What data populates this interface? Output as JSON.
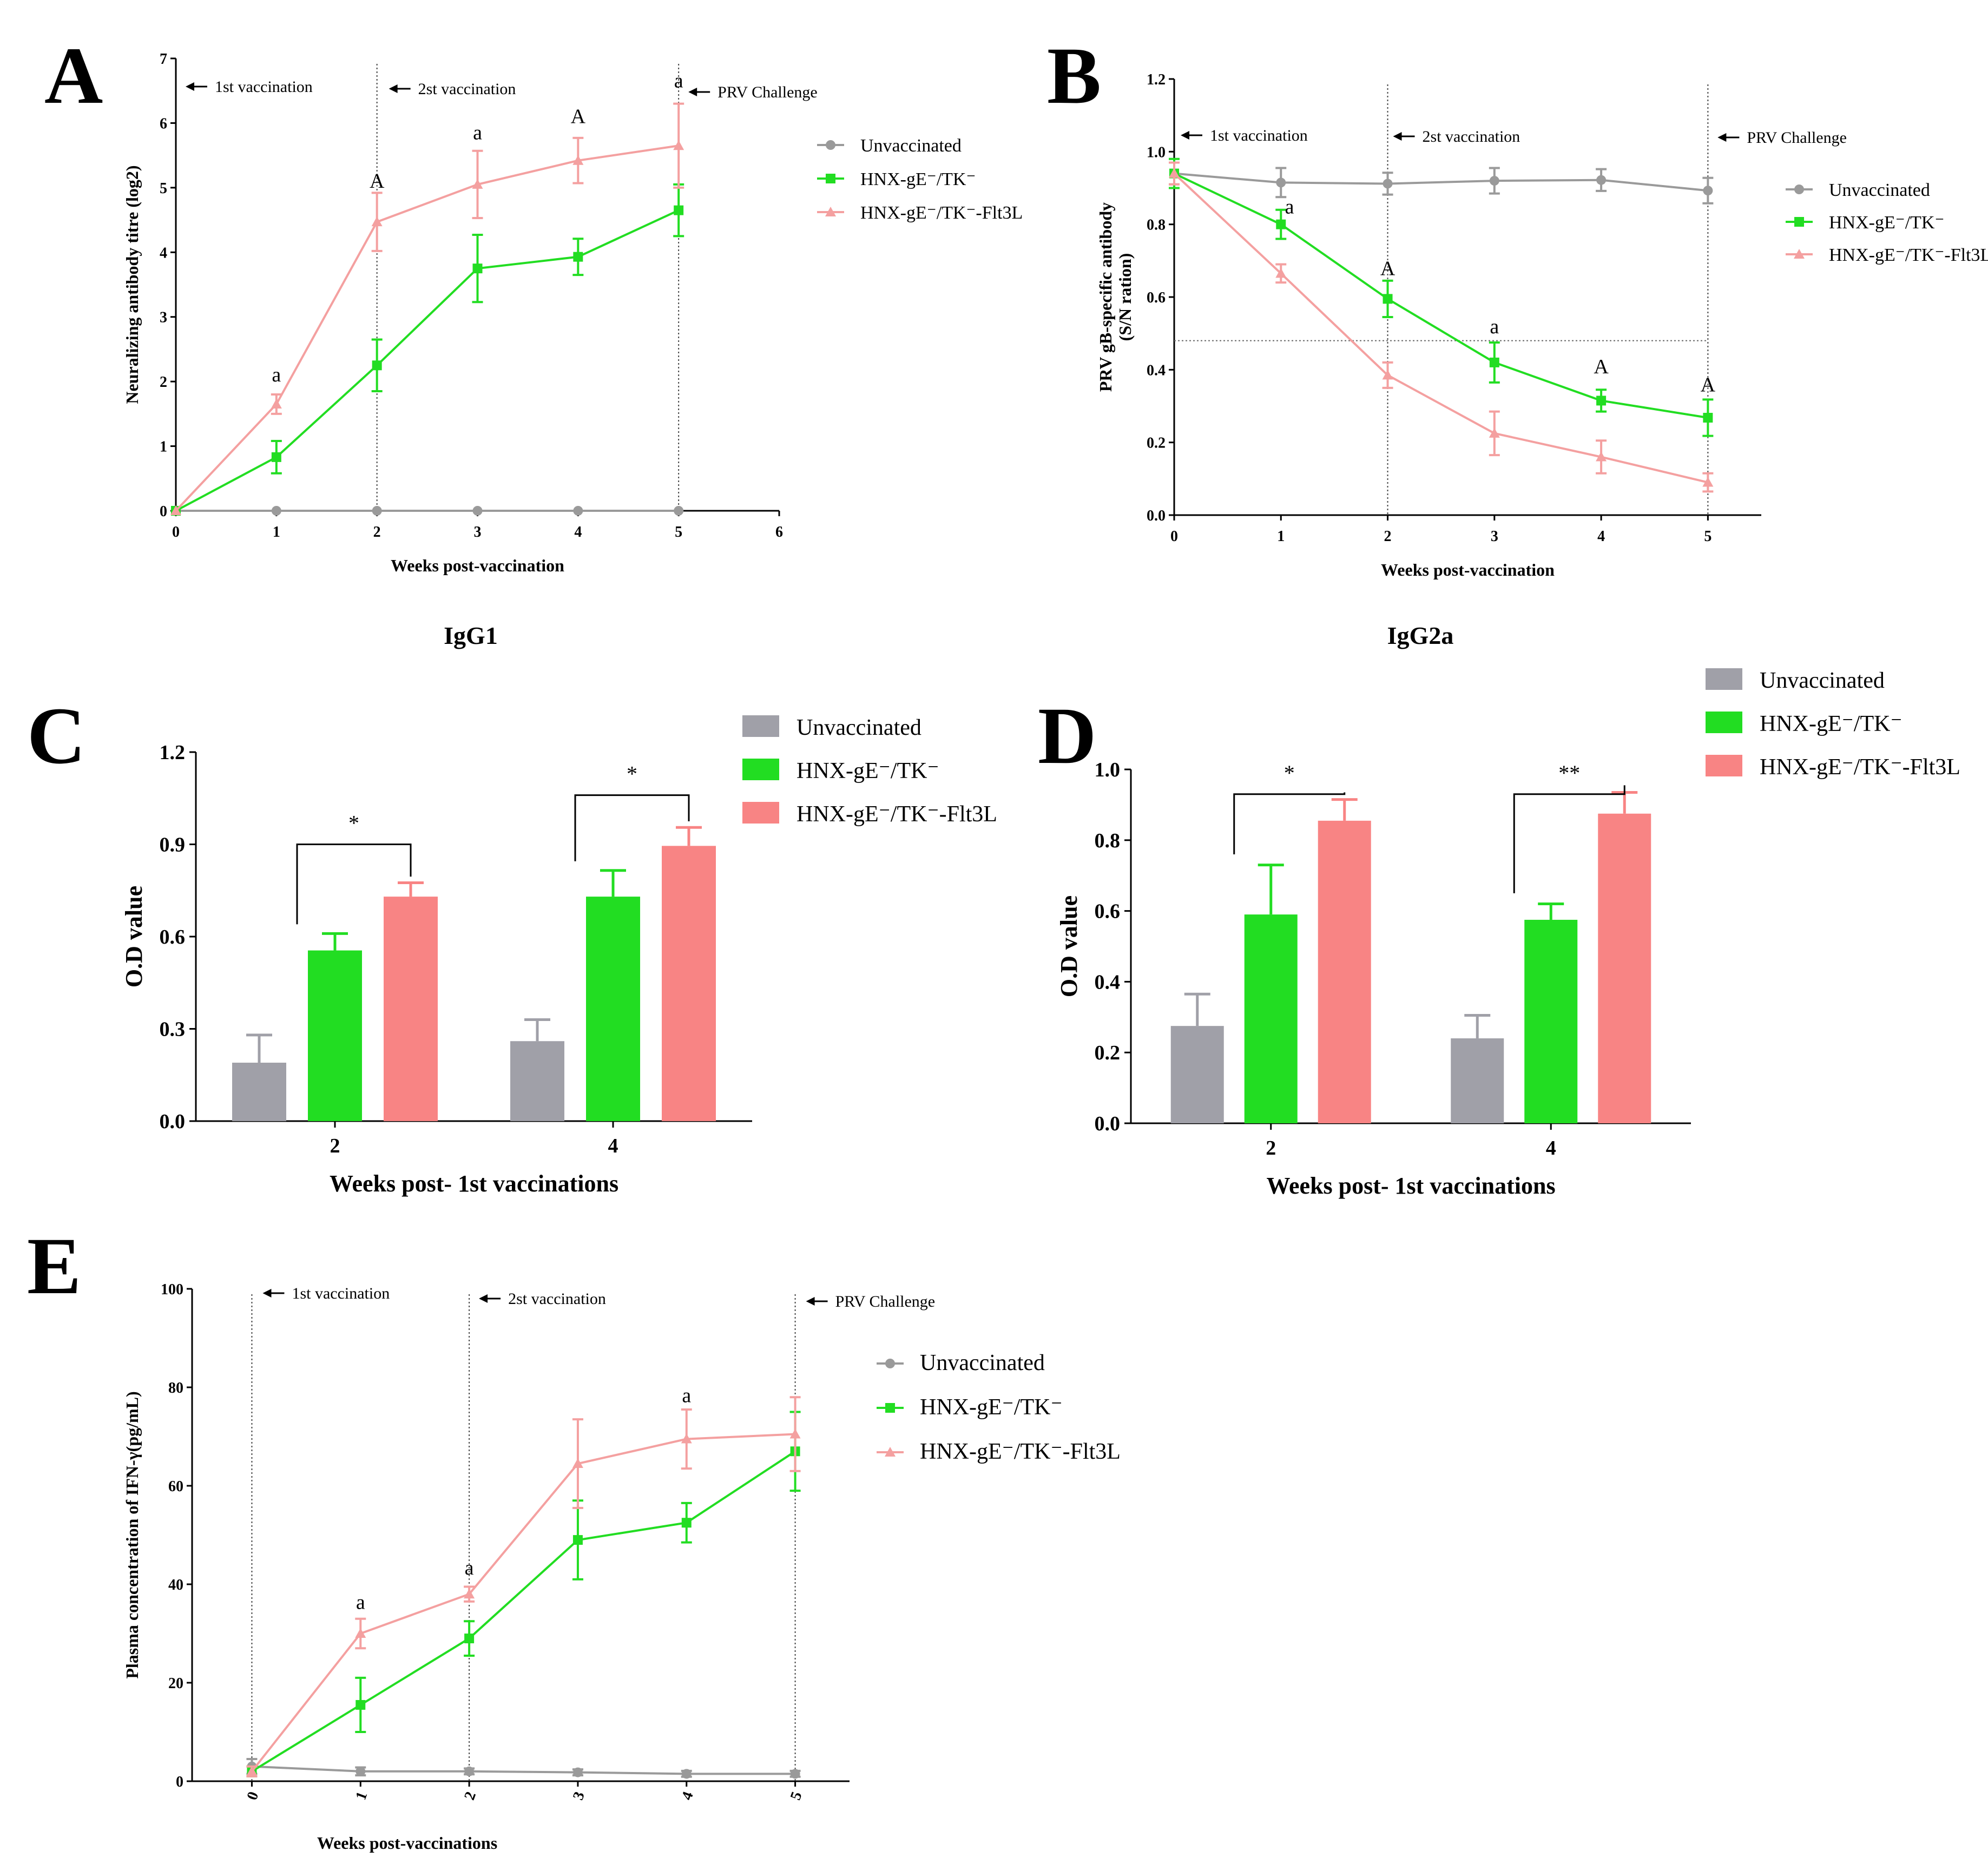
{
  "colors": {
    "unvacc": "#9a9a9a",
    "gE": "#22dd22",
    "flt": "#f4a0a0",
    "fltBar": "#f88484",
    "gray": "#a0a0a8"
  },
  "chart_data": [
    {
      "id": "A",
      "type": "line",
      "label": "A",
      "ylabel": "Neuralizing antibody titre (log2)",
      "xlabel": "Weeks post-vaccination",
      "ylim": [
        0,
        7
      ],
      "yticks": [
        0,
        1,
        2,
        3,
        4,
        5,
        6,
        7
      ],
      "xlim": [
        0,
        6
      ],
      "xticks": [
        0,
        1,
        2,
        3,
        4,
        5,
        6
      ],
      "vlines": [
        2,
        5
      ],
      "events": [
        {
          "label": "1st vaccination",
          "x": 0
        },
        {
          "label": "2st vaccination",
          "x": 2
        },
        {
          "label": "PRV Challenge",
          "x": 5
        }
      ],
      "legend": [
        "Unvaccinated",
        "HNX-gE⁻/TK⁻",
        "HNX-gE⁻/TK⁻-Flt3L"
      ],
      "series": [
        {
          "name": "Unvaccinated",
          "x": [
            0,
            1,
            2,
            3,
            4,
            5
          ],
          "values": [
            0,
            0,
            0,
            0,
            0,
            0
          ],
          "err": [
            0,
            0,
            0,
            0,
            0,
            0
          ]
        },
        {
          "name": "HNX-gE⁻/TK⁻",
          "x": [
            0,
            1,
            2,
            3,
            4,
            5
          ],
          "values": [
            0,
            0.83,
            2.25,
            3.75,
            3.93,
            4.65
          ],
          "err": [
            0,
            0.25,
            0.4,
            0.52,
            0.28,
            0.4
          ]
        },
        {
          "name": "HNX-gE⁻/TK⁻-Flt3L",
          "x": [
            0,
            1,
            2,
            3,
            4,
            5
          ],
          "values": [
            0,
            1.65,
            4.47,
            5.05,
            5.42,
            5.65
          ],
          "err": [
            0,
            0.15,
            0.45,
            0.52,
            0.35,
            0.65
          ]
        }
      ],
      "annotations": [
        {
          "x": 1,
          "y": 2.0,
          "text": "a"
        },
        {
          "x": 2,
          "y": 5.0,
          "text": "A"
        },
        {
          "x": 3,
          "y": 5.75,
          "text": "a"
        },
        {
          "x": 4,
          "y": 6.0,
          "text": "A"
        },
        {
          "x": 5,
          "y": 6.55,
          "text": "a"
        }
      ]
    },
    {
      "id": "B",
      "type": "line",
      "label": "B",
      "ylabel": "PRV gB-specific antibody",
      "ylabel2": "(S/N ration)",
      "xlabel": "Weeks post-vaccination",
      "ylim": [
        0,
        1.2
      ],
      "yticks": [
        0,
        0.2,
        0.4,
        0.6,
        0.8,
        1.0,
        1.2
      ],
      "xlim": [
        0,
        5.5
      ],
      "xticks": [
        0,
        1,
        2,
        3,
        4,
        5
      ],
      "vlines": [
        2,
        5
      ],
      "hline": 0.48,
      "events": [
        {
          "label": "1st vaccination",
          "x": 0
        },
        {
          "label": "2st vaccination",
          "x": 2
        },
        {
          "label": "PRV Challenge",
          "x": 5
        }
      ],
      "legend": [
        "Unvaccinated",
        "HNX-gE⁻/TK⁻",
        "HNX-gE⁻/TK⁻-Flt3L"
      ],
      "series": [
        {
          "name": "Unvaccinated",
          "x": [
            0,
            1,
            2,
            3,
            4,
            5
          ],
          "values": [
            0.94,
            0.915,
            0.912,
            0.92,
            0.922,
            0.893
          ],
          "err": [
            0.03,
            0.04,
            0.03,
            0.035,
            0.03,
            0.035
          ]
        },
        {
          "name": "HNX-gE⁻/TK⁻",
          "x": [
            0,
            1,
            2,
            3,
            4,
            5
          ],
          "values": [
            0.94,
            0.8,
            0.595,
            0.42,
            0.315,
            0.268
          ],
          "err": [
            0.04,
            0.04,
            0.05,
            0.055,
            0.03,
            0.05
          ]
        },
        {
          "name": "HNX-gE⁻/TK⁻-Flt3L",
          "x": [
            0,
            1,
            2,
            3,
            4,
            5
          ],
          "values": [
            0.94,
            0.665,
            0.385,
            0.225,
            0.16,
            0.09
          ],
          "err": [
            0.03,
            0.025,
            0.035,
            0.06,
            0.045,
            0.025
          ]
        }
      ],
      "annotations": [
        {
          "x": 1.08,
          "y": 0.83,
          "text": "a"
        },
        {
          "x": 2,
          "y": 0.66,
          "text": "A"
        },
        {
          "x": 3,
          "y": 0.5,
          "text": "a"
        },
        {
          "x": 4,
          "y": 0.39,
          "text": "A"
        },
        {
          "x": 5,
          "y": 0.34,
          "text": "A"
        }
      ]
    },
    {
      "id": "C",
      "type": "bar",
      "label": "C",
      "subtitle": "IgG1",
      "ylabel": "O.D value",
      "xlabel": "Weeks post- 1st vaccinations",
      "ylim": [
        0,
        1.2
      ],
      "yticks": [
        0.0,
        0.3,
        0.6,
        0.9,
        1.2
      ],
      "categories": [
        "2",
        "4"
      ],
      "legend": [
        "Unvaccinated",
        "HNX-gE⁻/TK⁻",
        "HNX-gE⁻/TK⁻-Flt3L"
      ],
      "series": [
        {
          "name": "Unvaccinated",
          "values": [
            0.19,
            0.26
          ],
          "err": [
            0.09,
            0.07
          ]
        },
        {
          "name": "HNX-gE⁻/TK⁻",
          "values": [
            0.555,
            0.73
          ],
          "err": [
            0.055,
            0.085
          ]
        },
        {
          "name": "HNX-gE⁻/TK⁻-Flt3L",
          "values": [
            0.73,
            0.895
          ],
          "err": [
            0.045,
            0.06
          ]
        }
      ],
      "sig": [
        {
          "cat": 0,
          "label": "*",
          "y": 0.9
        },
        {
          "cat": 1,
          "label": "*",
          "y": 1.06
        }
      ]
    },
    {
      "id": "D",
      "type": "bar",
      "label": "D",
      "subtitle": "IgG2a",
      "ylabel": "O.D value",
      "xlabel": "Weeks post- 1st vaccinations",
      "ylim": [
        0,
        1.0
      ],
      "yticks": [
        0.0,
        0.2,
        0.4,
        0.6,
        0.8,
        1.0
      ],
      "categories": [
        "2",
        "4"
      ],
      "legend": [
        "Unvaccinated",
        "HNX-gE⁻/TK⁻",
        "HNX-gE⁻/TK⁻-Flt3L"
      ],
      "series": [
        {
          "name": "Unvaccinated",
          "values": [
            0.275,
            0.24
          ],
          "err": [
            0.09,
            0.065
          ]
        },
        {
          "name": "HNX-gE⁻/TK⁻",
          "values": [
            0.59,
            0.575
          ],
          "err": [
            0.14,
            0.045
          ]
        },
        {
          "name": "HNX-gE⁻/TK⁻-Flt3L",
          "values": [
            0.855,
            0.875
          ],
          "err": [
            0.06,
            0.06
          ]
        }
      ],
      "sig": [
        {
          "cat": 0,
          "label": "*",
          "y": 0.93
        },
        {
          "cat": 1,
          "label": "**",
          "y": 0.93
        }
      ]
    },
    {
      "id": "E",
      "type": "line",
      "label": "E",
      "ylabel": "Plasma concentration of IFN-γ(pg/mL)",
      "xlabel": "Weeks post-vaccinations",
      "ylim": [
        0,
        100
      ],
      "yticks": [
        0,
        20,
        40,
        60,
        80,
        100
      ],
      "xlim": [
        -0.55,
        5.5
      ],
      "xticks": [
        0,
        1,
        2,
        3,
        4,
        5
      ],
      "vlines": [
        0,
        2,
        5
      ],
      "events": [
        {
          "label": "1st vaccination",
          "x": 0
        },
        {
          "label": "2st vaccination",
          "x": 2
        },
        {
          "label": "PRV Challenge",
          "x": 5
        }
      ],
      "legend": [
        "Unvaccinated",
        "HNX-gE⁻/TK⁻",
        "HNX-gE⁻/TK⁻-Flt3L"
      ],
      "series": [
        {
          "name": "Unvaccinated",
          "x": [
            0,
            1,
            2,
            3,
            4,
            5
          ],
          "values": [
            3,
            2,
            2,
            1.8,
            1.5,
            1.5
          ],
          "err": [
            1.5,
            0.8,
            0.6,
            0.6,
            0.6,
            0.6
          ]
        },
        {
          "name": "HNX-gE⁻/TK⁻",
          "x": [
            0,
            1,
            2,
            3,
            4,
            5
          ],
          "values": [
            2,
            15.5,
            29,
            49,
            52.5,
            67
          ],
          "err": [
            1,
            5.5,
            3.5,
            8,
            4,
            8
          ]
        },
        {
          "name": "HNX-gE⁻/TK⁻-Flt3L",
          "x": [
            0,
            1,
            2,
            3,
            4,
            5
          ],
          "values": [
            2,
            30,
            38,
            64.5,
            69.5,
            70.5
          ],
          "err": [
            1,
            3,
            1.5,
            9,
            6,
            7.5
          ]
        }
      ],
      "annotations": [
        {
          "x": 1,
          "y": 35,
          "text": "a"
        },
        {
          "x": 2,
          "y": 42,
          "text": "a"
        },
        {
          "x": 4,
          "y": 77,
          "text": "a"
        }
      ]
    }
  ]
}
